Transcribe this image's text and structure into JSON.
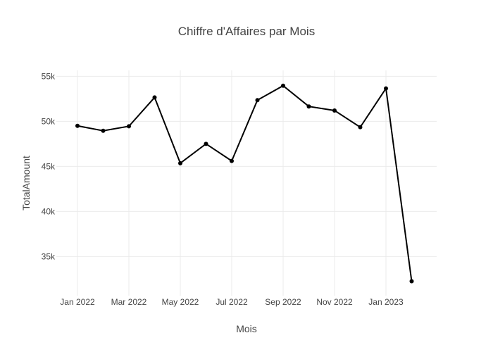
{
  "chart_data": {
    "type": "line",
    "title": "Chiffre d'Affaires par Mois",
    "xlabel": "Mois",
    "ylabel": "TotalAmount",
    "x": [
      "2022-01",
      "2022-02",
      "2022-03",
      "2022-04",
      "2022-05",
      "2022-06",
      "2022-07",
      "2022-08",
      "2022-09",
      "2022-10",
      "2022-11",
      "2022-12",
      "2023-01",
      "2023-02"
    ],
    "series": [
      {
        "values": [
          49500,
          48950,
          49450,
          52650,
          45350,
          47500,
          45600,
          52350,
          53950,
          51650,
          51200,
          49350,
          53650,
          32250
        ]
      }
    ],
    "x_ticks": [
      "Jan 2022",
      "Mar 2022",
      "May 2022",
      "Jul 2022",
      "Sep 2022",
      "Nov 2022",
      "Jan 2023"
    ],
    "y_ticks": [
      "35k",
      "40k",
      "45k",
      "50k",
      "55k"
    ],
    "ylim": [
      30650,
      55650
    ],
    "grid": true,
    "line_color": "#000000"
  }
}
